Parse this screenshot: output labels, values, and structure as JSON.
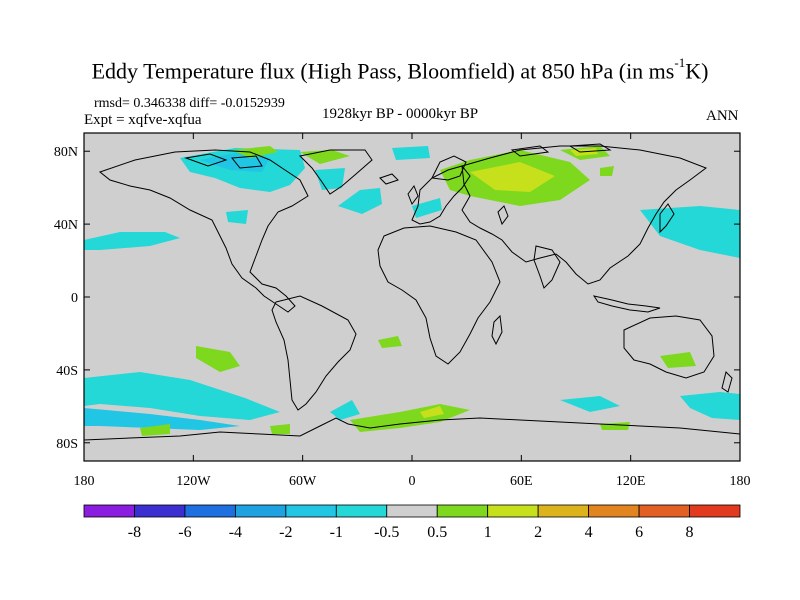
{
  "title": {
    "main": "Eddy Temperature flux (High Pass, Bloomfield) at 850 hPa (in ms",
    "sup": "-1",
    "end": "K)"
  },
  "subtitle": {
    "stats": "rmsd= 0.346338 diff= -0.0152939",
    "experiment": "Expt = xqfve-xqfua",
    "period": "1928kyr BP - 0000kyr BP",
    "season": "ANN"
  },
  "axes": {
    "lat_labels": [
      "80N",
      "40N",
      "0",
      "40S",
      "80S"
    ],
    "lon_labels": [
      "180",
      "120W",
      "60W",
      "0",
      "60E",
      "120E",
      "180"
    ]
  },
  "colorbar": {
    "labels": [
      "-8",
      "-6",
      "-4",
      "-2",
      "-1",
      "-0.5",
      "0.5",
      "1",
      "2",
      "4",
      "6",
      "8"
    ],
    "colors": [
      "#8a1de0",
      "#3c2fd2",
      "#1e6fe0",
      "#1ea2e2",
      "#20c6e4",
      "#23d8d6",
      "#cfcfcf",
      "#7dd81e",
      "#c6e01c",
      "#dcb31a",
      "#e28420",
      "#e26024",
      "#e23a1e"
    ]
  },
  "colors": {
    "ocean": "#cfcfcf",
    "coast": "#000000"
  }
}
